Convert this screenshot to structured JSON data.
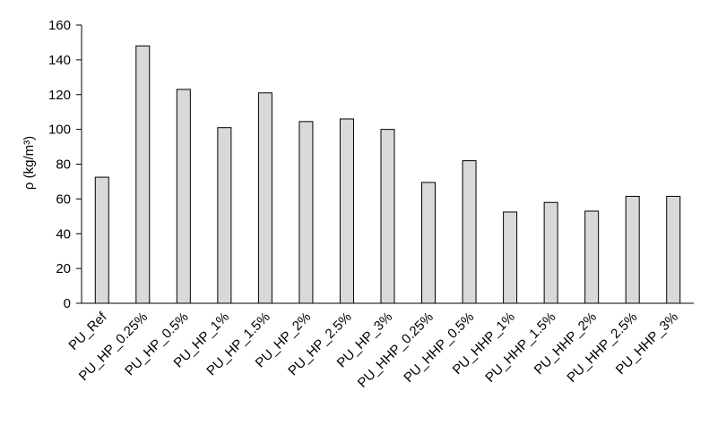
{
  "chart_data": {
    "type": "bar",
    "categories": [
      "PU_Ref",
      "PU_HP_0.25%",
      "PU_HP_0.5%",
      "PU_HP_1%",
      "PU_HP_1.5%",
      "PU_HP_2%",
      "PU_HP_2.5%",
      "PU_HP_3%",
      "PU_HHP_0.25%",
      "PU_HHP_0.5%",
      "PU_HHP_1%",
      "PU_HHP_1.5%",
      "PU_HHP_2%",
      "PU_HHP_2.5%",
      "PU_HHP_3%"
    ],
    "values": [
      72.5,
      148,
      123,
      101,
      121,
      104.5,
      106,
      100,
      69.5,
      82,
      52.5,
      58,
      53,
      61.5,
      61.5
    ],
    "title": "",
    "xlabel": "",
    "ylabel": "ρ (kg/m³)",
    "ylim": [
      0,
      160
    ],
    "yticks": [
      "0",
      "20",
      "40",
      "60",
      "80",
      "100",
      "120",
      "140",
      "160"
    ],
    "grid": false,
    "legend": "none",
    "colors": {
      "bar_fill": "#d9d9d9",
      "bar_stroke": "#000000",
      "axis": "#000000"
    }
  }
}
